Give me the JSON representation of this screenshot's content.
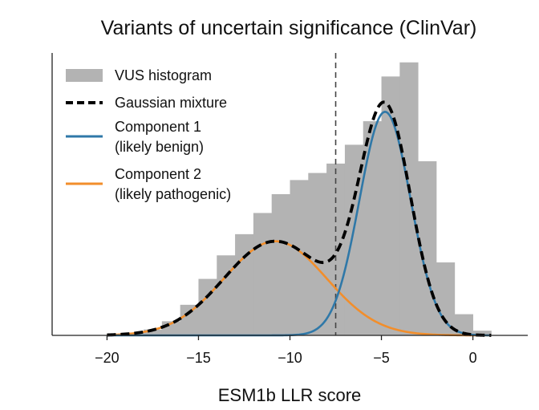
{
  "chart_data": {
    "type": "histogram",
    "title": "Variants of uncertain significance (ClinVar)",
    "xlabel": "ESM1b LLR score",
    "ylabel": "",
    "xlim": [
      -23,
      3
    ],
    "ylim": [
      0,
      1.2
    ],
    "xticks": [
      -20,
      -15,
      -10,
      -5,
      0
    ],
    "xtick_labels": [
      "−20",
      "−15",
      "−10",
      "−5",
      "0"
    ],
    "threshold": -7.5,
    "histogram": {
      "name": "VUS histogram",
      "color": "#b3b3b3",
      "bin_edges": [
        -20,
        -19,
        -18,
        -17,
        -16,
        -15,
        -14,
        -13,
        -12,
        -11,
        -10,
        -9,
        -8,
        -7,
        -6,
        -5,
        -4,
        -3,
        -2,
        -1,
        0,
        1
      ],
      "counts": [
        0.005,
        0.01,
        0.025,
        0.06,
        0.13,
        0.24,
        0.34,
        0.43,
        0.52,
        0.6,
        0.66,
        0.69,
        0.73,
        0.81,
        0.91,
        1.1,
        1.16,
        0.74,
        0.31,
        0.09,
        0.02
      ]
    },
    "series": [
      {
        "name": "Gaussian mixture",
        "color": "#000000",
        "style": "dashed"
      },
      {
        "name": "Component 1",
        "sublabel": "(likely benign)",
        "color": "#2f78a8",
        "mean": -4.8,
        "sd": 1.4,
        "peak": 0.95
      },
      {
        "name": "Component 2",
        "sublabel": "(likely pathogenic)",
        "color": "#f28e2b",
        "mean": -10.8,
        "sd": 2.8,
        "peak": 0.4
      }
    ],
    "legend_position": "top-left"
  }
}
